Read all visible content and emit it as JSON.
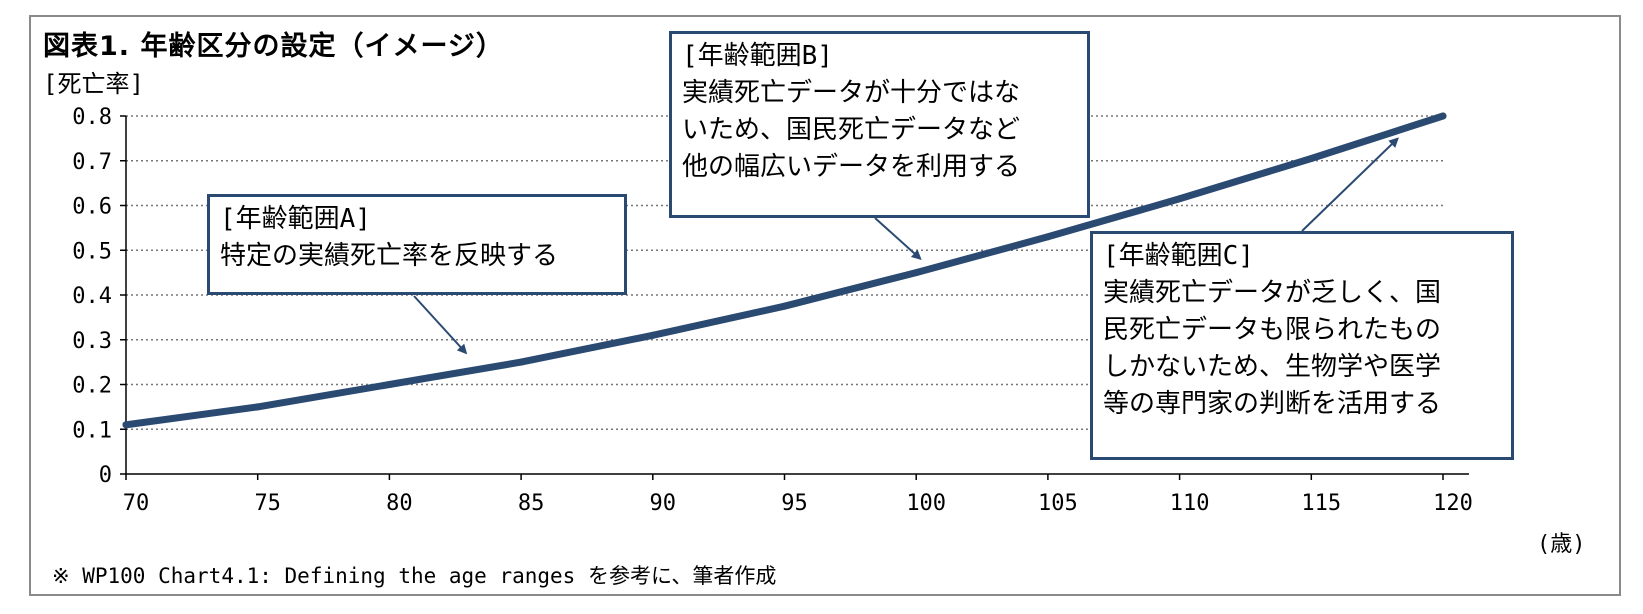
{
  "chart_data": {
    "type": "line",
    "title": "図表1. 年齢区分の設定（イメージ）",
    "ylabel": "[死亡率]",
    "xlabel": "(歳)",
    "xlim": [
      70,
      120
    ],
    "ylim": [
      0,
      0.8
    ],
    "x_ticks": [
      "70",
      "75",
      "80",
      "85",
      "90",
      "95",
      "100",
      "105",
      "110",
      "115",
      "120"
    ],
    "y_ticks": [
      "0",
      "0.1",
      "0.2",
      "0.3",
      "0.4",
      "0.5",
      "0.6",
      "0.7",
      "0.8"
    ],
    "grid": "horizontal-dotted",
    "series": [
      {
        "x": [
          70,
          75,
          80,
          85,
          90,
          95,
          100,
          105,
          110,
          115,
          120
        ],
        "y": [
          0.11,
          0.15,
          0.2,
          0.25,
          0.31,
          0.375,
          0.45,
          0.53,
          0.615,
          0.705,
          0.8
        ],
        "color": "#2b4a72"
      }
    ],
    "annotations": [
      {
        "id": "a",
        "lines": [
          "[年齢範囲A]",
          "特定の実績死亡率を反映する"
        ],
        "arrow_to_x": 82.6
      },
      {
        "id": "b",
        "lines": [
          "[年齢範囲B]",
          "実績死亡データが十分ではな",
          "いため、国民死亡データなど",
          "他の幅広いデータを利用する"
        ],
        "arrow_to_x": 100
      },
      {
        "id": "c",
        "lines": [
          "[年齢範囲C]",
          "実績死亡データが乏しく、国",
          "民死亡データも限られたもの",
          "しかないため、生物学や医学",
          "等の専門家の判断を活用する"
        ],
        "arrow_to_x": 118.5
      }
    ],
    "source_note": "※ WP100 Chart4.1: Defining the age ranges を参考に、筆者作成"
  },
  "colors": {
    "line": "#2b4a72",
    "frame": "#8a8a8a",
    "grid": "#777777"
  }
}
